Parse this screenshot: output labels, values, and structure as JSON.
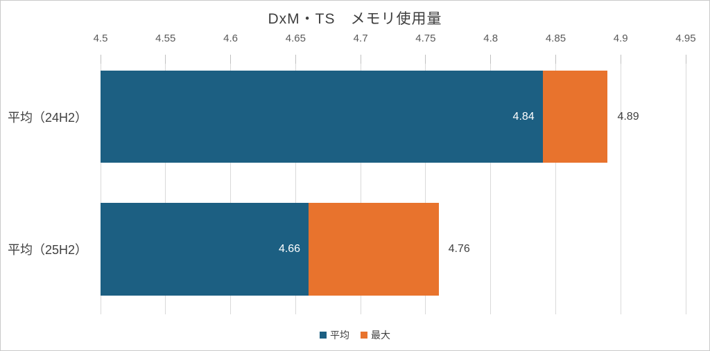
{
  "chart": {
    "background": "#ffffff",
    "border_color": "#c9c9c9"
  },
  "chart_data": {
    "type": "bar",
    "orientation": "horizontal",
    "title": "DxM・TS　メモリ使用量",
    "categories": [
      "平均（24H2）",
      "平均（25H2）"
    ],
    "series": [
      {
        "name": "平均",
        "key": "avg",
        "color": "#1c5f82",
        "values": [
          4.84,
          4.66
        ]
      },
      {
        "name": "最大",
        "key": "max",
        "color": "#e8732d",
        "values": [
          4.89,
          4.76
        ]
      }
    ],
    "segment_style": "max segment drawn stacked from avg value to max value",
    "value_labels": {
      "avg": [
        "4.84",
        "4.66"
      ],
      "max": [
        "4.89",
        "4.76"
      ]
    },
    "xlim": [
      4.5,
      4.95
    ],
    "xticks": [
      4.5,
      4.55,
      4.6,
      4.65,
      4.7,
      4.75,
      4.8,
      4.85,
      4.9,
      4.95
    ],
    "xtick_labels": [
      "4.5",
      "4.55",
      "4.6",
      "4.65",
      "4.7",
      "4.75",
      "4.8",
      "4.85",
      "4.9",
      "4.95"
    ],
    "xlabel": "",
    "ylabel": "",
    "grid": true,
    "legend_position": "bottom",
    "legend": [
      "平均",
      "最大"
    ],
    "gridline_color": "#d9d9d9",
    "tick_color": "#bfbfbf",
    "text_colors": {
      "title": "#3f3f3f",
      "axis_ticks": "#595959",
      "category": "#404040",
      "label_inside": "#ffffff",
      "label_outside": "#404040",
      "legend": "#404040"
    }
  }
}
